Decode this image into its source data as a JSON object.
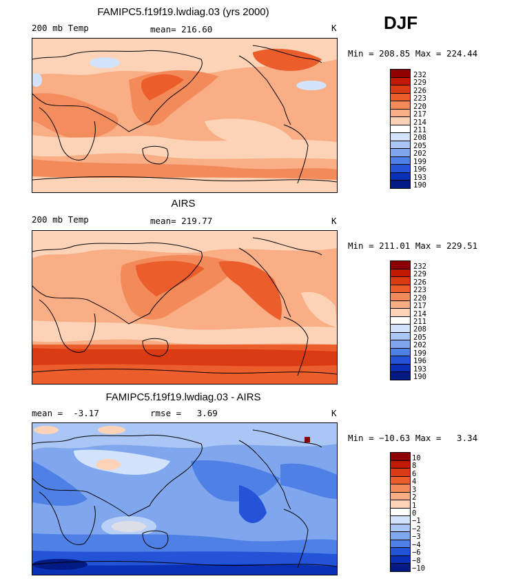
{
  "season": "DJF",
  "panels": [
    {
      "title": "FAMIPC5.f19f19.lwdiag.03 (yrs 2000)",
      "left_label": "200 mb Temp",
      "center_label": "mean= 216.60",
      "units": "K",
      "minmax": "Min = 208.85 Max = 224.44",
      "colorbar_labels": [
        "232",
        "229",
        "226",
        "223",
        "220",
        "217",
        "214",
        "211",
        "208",
        "205",
        "202",
        "199",
        "196",
        "193",
        "190"
      ],
      "colors": [
        "#8c0000",
        "#bf1a00",
        "#db3b12",
        "#ec5d2c",
        "#f38a5a",
        "#f9ae86",
        "#fcd3b7",
        "#ffffff",
        "#d2e3fb",
        "#a9c6f5",
        "#80a7ee",
        "#4f80e6",
        "#2354d8",
        "#0a30b5",
        "#021a84"
      ],
      "map_style": "model"
    },
    {
      "title": "AIRS",
      "left_label": "200 mb Temp",
      "center_label": "mean= 219.77",
      "units": "K",
      "minmax": "Min = 211.01 Max = 229.51",
      "colorbar_labels": [
        "232",
        "229",
        "226",
        "223",
        "220",
        "217",
        "214",
        "211",
        "208",
        "205",
        "202",
        "199",
        "196",
        "193",
        "190"
      ],
      "colors": [
        "#8c0000",
        "#bf1a00",
        "#db3b12",
        "#ec5d2c",
        "#f38a5a",
        "#f9ae86",
        "#fcd3b7",
        "#ffffff",
        "#d2e3fb",
        "#a9c6f5",
        "#80a7ee",
        "#4f80e6",
        "#2354d8",
        "#0a30b5",
        "#021a84"
      ],
      "map_style": "obs"
    },
    {
      "title": "FAMIPC5.f19f19.lwdiag.03 - AIRS",
      "left_label": "mean =  -3.17",
      "center_label": "rmse =   3.69",
      "units": "K",
      "minmax": "Min = −10.63 Max =   3.34",
      "colorbar_labels": [
        "10",
        "8",
        "6",
        "4",
        "3",
        "2",
        "1",
        "0",
        "−1",
        "−2",
        "−3",
        "−4",
        "−6",
        "−8",
        "−10"
      ],
      "colors": [
        "#8c0000",
        "#bf1a00",
        "#db3b12",
        "#ec5d2c",
        "#f38a5a",
        "#f9ae86",
        "#fcd3b7",
        "#ffffff",
        "#d2e3fb",
        "#a9c6f5",
        "#80a7ee",
        "#4f80e6",
        "#2354d8",
        "#0a30b5",
        "#021a84"
      ],
      "map_style": "diff"
    }
  ]
}
